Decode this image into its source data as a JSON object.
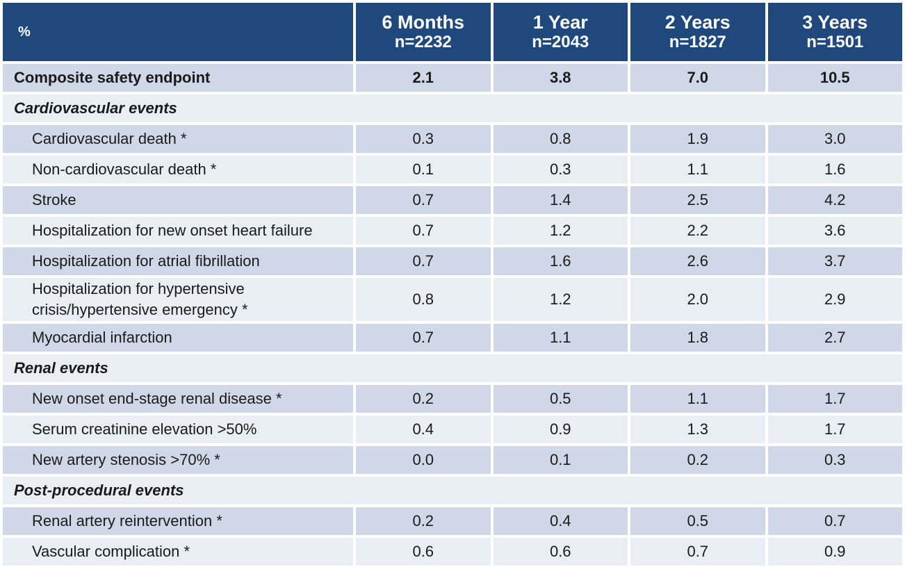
{
  "chart_data": {
    "type": "table",
    "header": {
      "corner": "%",
      "columns": [
        {
          "period": "6 Months",
          "n": "n=2232"
        },
        {
          "period": "1 Year",
          "n": "n=2043"
        },
        {
          "period": "2 Years",
          "n": "n=1827"
        },
        {
          "period": "3 Years",
          "n": "n=1501"
        }
      ]
    },
    "composite": {
      "label": "Composite safety endpoint",
      "values": [
        "2.1",
        "3.8",
        "7.0",
        "10.5"
      ]
    },
    "sections": [
      {
        "title": "Cardiovascular events",
        "rows": [
          {
            "label": "Cardiovascular death *",
            "values": [
              "0.3",
              "0.8",
              "1.9",
              "3.0"
            ]
          },
          {
            "label": "Non-cardiovascular death *",
            "values": [
              "0.1",
              "0.3",
              "1.1",
              "1.6"
            ]
          },
          {
            "label": "Stroke",
            "values": [
              "0.7",
              "1.4",
              "2.5",
              "4.2"
            ]
          },
          {
            "label": "Hospitalization for new onset heart failure",
            "values": [
              "0.7",
              "1.2",
              "2.2",
              "3.6"
            ]
          },
          {
            "label": "Hospitalization for atrial fibrillation",
            "values": [
              "0.7",
              "1.6",
              "2.6",
              "3.7"
            ]
          },
          {
            "label": "Hospitalization for hypertensive crisis/hypertensive emergency *",
            "values": [
              "0.8",
              "1.2",
              "2.0",
              "2.9"
            ]
          },
          {
            "label": "Myocardial infarction",
            "values": [
              "0.7",
              "1.1",
              "1.8",
              "2.7"
            ]
          }
        ]
      },
      {
        "title": "Renal events",
        "rows": [
          {
            "label": "New onset end-stage renal disease *",
            "values": [
              "0.2",
              "0.5",
              "1.1",
              "1.7"
            ]
          },
          {
            "label": "Serum creatinine elevation >50%",
            "values": [
              "0.4",
              "0.9",
              "1.3",
              "1.7"
            ]
          },
          {
            "label": "New artery stenosis >70% *",
            "values": [
              "0.0",
              "0.1",
              "0.2",
              "0.3"
            ]
          }
        ]
      },
      {
        "title": "Post-procedural events",
        "rows": [
          {
            "label": "Renal artery reintervention *",
            "values": [
              "0.2",
              "0.4",
              "0.5",
              "0.7"
            ]
          },
          {
            "label": "Vascular complication *",
            "values": [
              "0.6",
              "0.6",
              "0.7",
              "0.9"
            ]
          }
        ]
      }
    ]
  }
}
